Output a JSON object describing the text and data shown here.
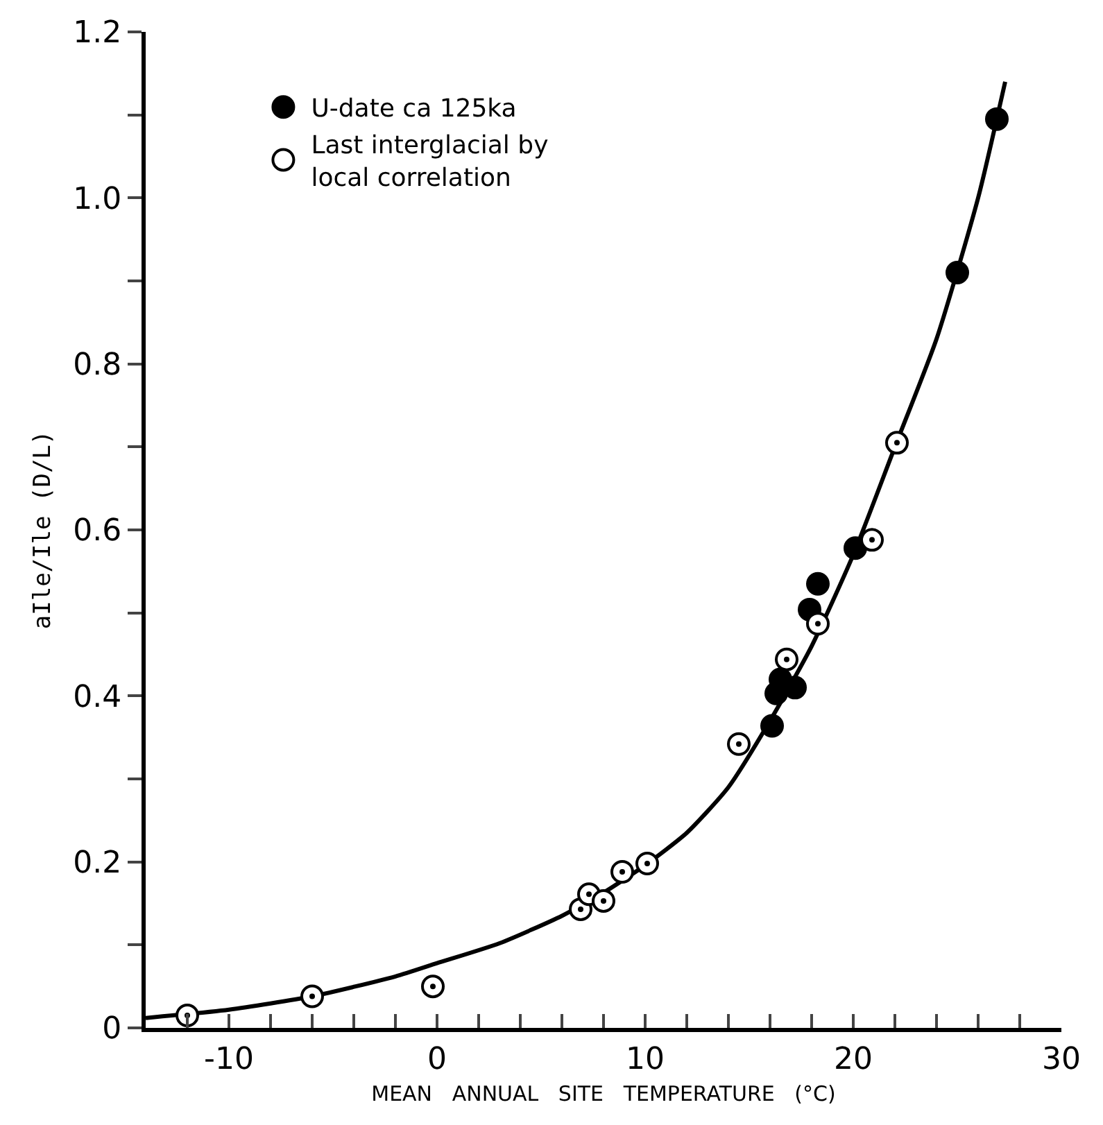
{
  "chart_data": {
    "type": "scatter",
    "xlabel": "MEAN   ANNUAL   SITE   TEMPERATURE   (°C)",
    "ylabel": "aIle/Ile (D/L)",
    "xlim": [
      -14,
      30
    ],
    "xticks": [
      {
        "value": -12,
        "label": null
      },
      -10,
      {
        "value": -8,
        "label": null
      },
      {
        "value": -6,
        "label": null
      },
      {
        "value": -4,
        "label": null
      },
      {
        "value": -2,
        "label": null
      },
      0,
      {
        "value": 2,
        "label": null
      },
      {
        "value": 4,
        "label": null
      },
      {
        "value": 6,
        "label": null
      },
      {
        "value": 8,
        "label": null
      },
      10,
      {
        "value": 12,
        "label": null
      },
      {
        "value": 14,
        "label": null
      },
      {
        "value": 16,
        "label": null
      },
      {
        "value": 18,
        "label": null
      },
      20,
      {
        "value": 22,
        "label": null
      },
      {
        "value": 24,
        "label": null
      },
      {
        "value": 26,
        "label": null
      },
      {
        "value": 28,
        "label": null
      },
      30
    ],
    "ylim": [
      0,
      1.2
    ],
    "yticks": [
      0,
      {
        "value": 0.1,
        "label": null
      },
      0.2,
      {
        "value": 0.3,
        "label": null
      },
      0.4,
      {
        "value": 0.5,
        "label": null
      },
      0.6,
      {
        "value": 0.7,
        "label": null
      },
      0.8,
      {
        "value": 0.9,
        "label": null
      },
      {
        "value": 1.0,
        "label": "1.0"
      },
      {
        "value": 1.1,
        "label": null
      },
      1.2
    ],
    "grid": false,
    "legend": "top left",
    "marker": "circle",
    "series": [
      {
        "name": "U-date ca 125ka",
        "color": "#000000",
        "x": [
          16.1,
          16.5,
          16.3,
          17.2,
          17.9,
          18.3,
          20.1,
          25.0,
          26.9
        ],
        "values": [
          0.364,
          0.42,
          0.403,
          0.41,
          0.504,
          0.535,
          0.578,
          0.91,
          1.095
        ]
      },
      {
        "name": "Last interglacial by\nlocal correlation",
        "color": "#ffffff",
        "x": [
          -12.0,
          -6.0,
          -0.2,
          6.9,
          7.3,
          8.0,
          8.9,
          10.1,
          14.5,
          16.8,
          18.3,
          20.9,
          22.1
        ],
        "values": [
          0.015,
          0.038,
          0.05,
          0.143,
          0.161,
          0.153,
          0.188,
          0.198,
          0.342,
          0.444,
          0.487,
          0.588,
          0.705
        ]
      },
      {
        "type": "line",
        "color": "#000000",
        "marker": "none",
        "line_style": "solid",
        "x": [
          -14,
          -10,
          -6,
          -2,
          0,
          3,
          6,
          8,
          10,
          12,
          14,
          16,
          18,
          20,
          22,
          24,
          26,
          27.3
        ],
        "values": [
          0.012,
          0.022,
          0.038,
          0.062,
          0.078,
          0.102,
          0.135,
          0.163,
          0.196,
          0.235,
          0.29,
          0.37,
          0.46,
          0.57,
          0.7,
          0.83,
          1.0,
          1.14
        ]
      }
    ]
  }
}
